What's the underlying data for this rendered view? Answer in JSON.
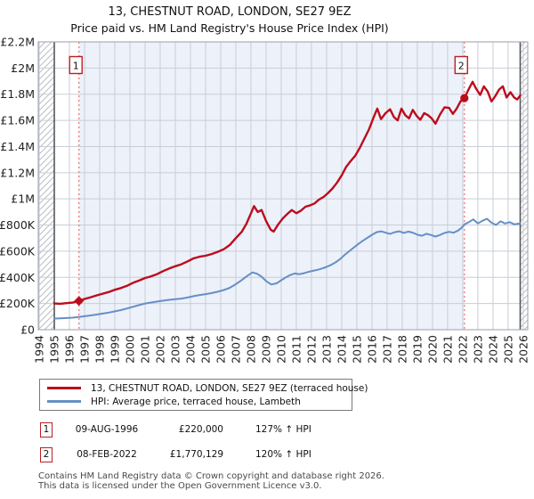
{
  "title": {
    "line1": "13, CHESTNUT ROAD, LONDON, SE27 9EZ",
    "line2": "Price paid vs. HM Land Registry's House Price Index (HPI)"
  },
  "chart_data": {
    "type": "line",
    "title": "13, CHESTNUT ROAD, LONDON, SE27 9EZ",
    "subtitle": "Price paid vs. HM Land Registry's House Price Index (HPI)",
    "grid": true,
    "legend_position": "bottom",
    "ylim_gbp": [
      0,
      2200000
    ],
    "ytick_step_gbp": 200000,
    "ytick_labels": [
      "£0",
      "£200K",
      "£400K",
      "£600K",
      "£800K",
      "£1M",
      "£1.2M",
      "£1.4M",
      "£1.6M",
      "£1.8M",
      "£2M",
      "£2.2M"
    ],
    "xtick_labels": [
      "1994",
      "1995",
      "1996",
      "1997",
      "1998",
      "1999",
      "2000",
      "2001",
      "2002",
      "2003",
      "2004",
      "2005",
      "2006",
      "2007",
      "2008",
      "2009",
      "2010",
      "2011",
      "2012",
      "2013",
      "2014",
      "2015",
      "2016",
      "2017",
      "2018",
      "2019",
      "2020",
      "2021",
      "2022",
      "2023",
      "2024",
      "2025",
      "2026"
    ],
    "x_axis_year_range": [
      1993.94,
      2026.3
    ],
    "data_start_year": 1995.0,
    "data_end_year": 2025.8,
    "shaded_span_years": [
      1996.63,
      2022.11
    ],
    "values_unit": "GBP thousands",
    "series": [
      {
        "name": "13, CHESTNUT ROAD, LONDON, SE27 9EZ (terraced house)",
        "color": "#bc0c1c",
        "points": [
          [
            1995.0,
            200
          ],
          [
            1995.4,
            198
          ],
          [
            1995.8,
            203
          ],
          [
            1996.2,
            207
          ],
          [
            1996.63,
            220
          ],
          [
            1997.0,
            235
          ],
          [
            1997.4,
            248
          ],
          [
            1997.8,
            262
          ],
          [
            1998.2,
            275
          ],
          [
            1998.6,
            288
          ],
          [
            1999.0,
            305
          ],
          [
            1999.4,
            318
          ],
          [
            1999.8,
            335
          ],
          [
            2000.2,
            358
          ],
          [
            2000.6,
            375
          ],
          [
            2001.0,
            395
          ],
          [
            2001.4,
            408
          ],
          [
            2001.8,
            425
          ],
          [
            2002.2,
            448
          ],
          [
            2002.6,
            468
          ],
          [
            2003.0,
            485
          ],
          [
            2003.4,
            500
          ],
          [
            2003.8,
            522
          ],
          [
            2004.2,
            545
          ],
          [
            2004.6,
            558
          ],
          [
            2005.0,
            565
          ],
          [
            2005.4,
            578
          ],
          [
            2005.8,
            595
          ],
          [
            2006.2,
            615
          ],
          [
            2006.6,
            648
          ],
          [
            2007.0,
            700
          ],
          [
            2007.4,
            750
          ],
          [
            2007.7,
            810
          ],
          [
            2008.0,
            890
          ],
          [
            2008.2,
            945
          ],
          [
            2008.45,
            900
          ],
          [
            2008.7,
            915
          ],
          [
            2009.0,
            830
          ],
          [
            2009.3,
            765
          ],
          [
            2009.5,
            750
          ],
          [
            2009.8,
            805
          ],
          [
            2010.1,
            850
          ],
          [
            2010.4,
            885
          ],
          [
            2010.7,
            915
          ],
          [
            2011.0,
            890
          ],
          [
            2011.3,
            910
          ],
          [
            2011.6,
            940
          ],
          [
            2011.9,
            950
          ],
          [
            2012.2,
            965
          ],
          [
            2012.5,
            995
          ],
          [
            2012.8,
            1015
          ],
          [
            2013.1,
            1045
          ],
          [
            2013.4,
            1080
          ],
          [
            2013.7,
            1125
          ],
          [
            2014.0,
            1180
          ],
          [
            2014.3,
            1245
          ],
          [
            2014.6,
            1290
          ],
          [
            2014.9,
            1330
          ],
          [
            2015.2,
            1390
          ],
          [
            2015.5,
            1460
          ],
          [
            2015.8,
            1530
          ],
          [
            2016.1,
            1620
          ],
          [
            2016.35,
            1690
          ],
          [
            2016.6,
            1610
          ],
          [
            2016.9,
            1655
          ],
          [
            2017.2,
            1685
          ],
          [
            2017.45,
            1625
          ],
          [
            2017.7,
            1600
          ],
          [
            2017.95,
            1690
          ],
          [
            2018.2,
            1640
          ],
          [
            2018.45,
            1615
          ],
          [
            2018.7,
            1680
          ],
          [
            2018.95,
            1635
          ],
          [
            2019.2,
            1605
          ],
          [
            2019.45,
            1655
          ],
          [
            2019.7,
            1640
          ],
          [
            2019.95,
            1615
          ],
          [
            2020.2,
            1575
          ],
          [
            2020.5,
            1645
          ],
          [
            2020.8,
            1700
          ],
          [
            2021.1,
            1695
          ],
          [
            2021.35,
            1650
          ],
          [
            2021.6,
            1690
          ],
          [
            2021.85,
            1745
          ],
          [
            2022.11,
            1770
          ],
          [
            2022.4,
            1840
          ],
          [
            2022.65,
            1895
          ],
          [
            2022.9,
            1840
          ],
          [
            2023.15,
            1795
          ],
          [
            2023.4,
            1860
          ],
          [
            2023.65,
            1820
          ],
          [
            2023.9,
            1745
          ],
          [
            2024.15,
            1785
          ],
          [
            2024.4,
            1835
          ],
          [
            2024.65,
            1860
          ],
          [
            2024.9,
            1775
          ],
          [
            2025.15,
            1815
          ],
          [
            2025.4,
            1775
          ],
          [
            2025.6,
            1760
          ],
          [
            2025.8,
            1790
          ]
        ]
      },
      {
        "name": "HPI: Average price, terraced house, Lambeth",
        "color": "#6590c5",
        "points": [
          [
            1995.0,
            85
          ],
          [
            1995.4,
            87
          ],
          [
            1995.8,
            89
          ],
          [
            1996.2,
            92
          ],
          [
            1996.63,
            97
          ],
          [
            1997.0,
            103
          ],
          [
            1997.4,
            109
          ],
          [
            1997.8,
            116
          ],
          [
            1998.2,
            123
          ],
          [
            1998.6,
            131
          ],
          [
            1999.0,
            140
          ],
          [
            1999.4,
            150
          ],
          [
            1999.8,
            162
          ],
          [
            2000.2,
            175
          ],
          [
            2000.6,
            188
          ],
          [
            2001.0,
            200
          ],
          [
            2001.4,
            208
          ],
          [
            2001.8,
            215
          ],
          [
            2002.2,
            222
          ],
          [
            2002.6,
            228
          ],
          [
            2003.0,
            233
          ],
          [
            2003.4,
            238
          ],
          [
            2003.8,
            246
          ],
          [
            2004.2,
            256
          ],
          [
            2004.6,
            265
          ],
          [
            2005.0,
            272
          ],
          [
            2005.4,
            280
          ],
          [
            2005.8,
            290
          ],
          [
            2006.2,
            303
          ],
          [
            2006.6,
            320
          ],
          [
            2007.0,
            348
          ],
          [
            2007.4,
            380
          ],
          [
            2007.8,
            415
          ],
          [
            2008.1,
            438
          ],
          [
            2008.4,
            428
          ],
          [
            2008.7,
            405
          ],
          [
            2009.0,
            372
          ],
          [
            2009.35,
            345
          ],
          [
            2009.7,
            355
          ],
          [
            2010.0,
            378
          ],
          [
            2010.3,
            400
          ],
          [
            2010.6,
            418
          ],
          [
            2010.9,
            430
          ],
          [
            2011.2,
            424
          ],
          [
            2011.5,
            432
          ],
          [
            2011.8,
            442
          ],
          [
            2012.1,
            450
          ],
          [
            2012.4,
            458
          ],
          [
            2012.7,
            468
          ],
          [
            2013.0,
            480
          ],
          [
            2013.3,
            495
          ],
          [
            2013.6,
            515
          ],
          [
            2013.9,
            540
          ],
          [
            2014.2,
            572
          ],
          [
            2014.5,
            600
          ],
          [
            2014.8,
            628
          ],
          [
            2015.1,
            655
          ],
          [
            2015.4,
            680
          ],
          [
            2015.7,
            702
          ],
          [
            2016.0,
            725
          ],
          [
            2016.3,
            745
          ],
          [
            2016.6,
            752
          ],
          [
            2016.9,
            742
          ],
          [
            2017.2,
            732
          ],
          [
            2017.5,
            745
          ],
          [
            2017.8,
            752
          ],
          [
            2018.1,
            740
          ],
          [
            2018.4,
            750
          ],
          [
            2018.7,
            742
          ],
          [
            2019.0,
            726
          ],
          [
            2019.3,
            718
          ],
          [
            2019.6,
            733
          ],
          [
            2019.9,
            724
          ],
          [
            2020.2,
            712
          ],
          [
            2020.5,
            724
          ],
          [
            2020.8,
            740
          ],
          [
            2021.1,
            748
          ],
          [
            2021.4,
            742
          ],
          [
            2021.7,
            758
          ],
          [
            2021.95,
            782
          ],
          [
            2022.11,
            805
          ],
          [
            2022.4,
            822
          ],
          [
            2022.7,
            843
          ],
          [
            2023.0,
            812
          ],
          [
            2023.3,
            832
          ],
          [
            2023.6,
            848
          ],
          [
            2023.9,
            818
          ],
          [
            2024.2,
            800
          ],
          [
            2024.5,
            828
          ],
          [
            2024.8,
            812
          ],
          [
            2025.1,
            822
          ],
          [
            2025.4,
            806
          ],
          [
            2025.8,
            812
          ]
        ]
      }
    ],
    "sales": [
      {
        "label": "1",
        "date": "09-AUG-1996",
        "year": 1996.63,
        "price_gbp": 220000,
        "marker": "diamond"
      },
      {
        "label": "2",
        "date": "08-FEB-2022",
        "year": 2022.11,
        "price_gbp": 1770129,
        "marker": "circle"
      }
    ]
  },
  "legend": {
    "items": [
      {
        "label": "13, CHESTNUT ROAD, LONDON, SE27 9EZ (terraced house)",
        "color": "#bc0c1c"
      },
      {
        "label": "HPI: Average price, terraced house, Lambeth",
        "color": "#6590c5"
      }
    ]
  },
  "sales_table": {
    "rows": [
      {
        "num": "1",
        "date": "09-AUG-1996",
        "price": "£220,000",
        "hpi_change": "127% ↑ HPI"
      },
      {
        "num": "2",
        "date": "08-FEB-2022",
        "price": "£1,770,129",
        "hpi_change": "120% ↑ HPI"
      }
    ]
  },
  "footer": {
    "line1": "Contains HM Land Registry data © Crown copyright and database right 2026.",
    "line2": "This data is licensed under the Open Government Licence v3.0."
  },
  "colors": {
    "property_line": "#bc0c1c",
    "hpi_line": "#6590c5",
    "shaded_span": "#edf1fa",
    "grid": "#c9cdd6",
    "plot_border": "#9aa0a8",
    "sale_dashed_line": "#e97c7c",
    "hatch": "#b9bdc5",
    "data_edge_line": "#55585c",
    "sale_box_border": "#b92025",
    "axis_text": "#222222",
    "footer_text": "#4a4a4a"
  }
}
